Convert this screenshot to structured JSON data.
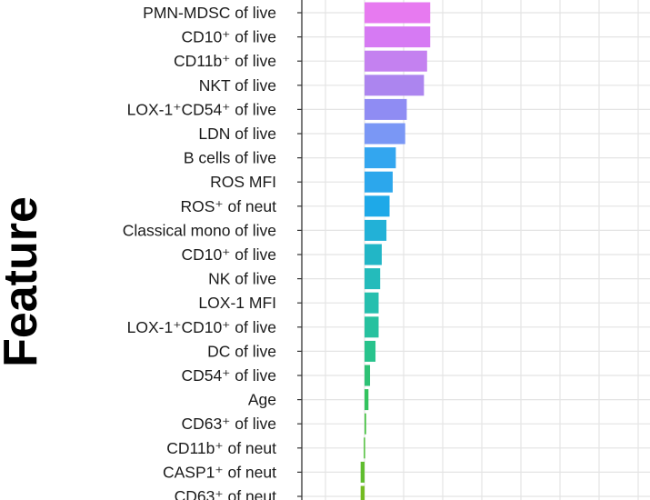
{
  "chart_data": {
    "type": "bar",
    "orientation": "horizontal",
    "title": "",
    "xlabel": "",
    "ylabel": "Feature",
    "xlim": [
      -0.5,
      2.0
    ],
    "grid": true,
    "legend": "none",
    "categories": [
      "PMN-MDSC of live",
      "CD10⁺ of live",
      "CD11b⁺ of live",
      "NKT of live",
      "LOX-1⁺CD54⁺ of live",
      "LDN of live",
      "B cells of live",
      "ROS MFI",
      "ROS⁺ of neut",
      "Classical mono of live",
      "CD10⁺ of live",
      "NK of live",
      "LOX-1 MFI",
      "LOX-1⁺CD10⁺ of live",
      "DC of live",
      "CD54⁺ of live",
      "Age",
      "CD63⁺ of live",
      "CD11b⁺ of neut",
      "CASP1⁺ of neut",
      "CD63⁺ of neut"
    ],
    "values": [
      0.42,
      0.42,
      0.4,
      0.38,
      0.27,
      0.26,
      0.2,
      0.18,
      0.16,
      0.14,
      0.11,
      0.1,
      0.09,
      0.09,
      0.07,
      0.035,
      0.025,
      0.01,
      -0.005,
      -0.025,
      -0.025
    ],
    "colors": [
      "#e77af0",
      "#d67af3",
      "#c481f0",
      "#ac85ef",
      "#8f8cf3",
      "#7a97f5",
      "#33a6ef",
      "#2ca7ec",
      "#1ea9e8",
      "#22b1d7",
      "#22b6c6",
      "#24bbbb",
      "#26bfae",
      "#27c19f",
      "#28c38c",
      "#2ec175",
      "#33c35e",
      "#46c243",
      "#4ec03a",
      "#60bd2f",
      "#73bb22"
    ]
  }
}
